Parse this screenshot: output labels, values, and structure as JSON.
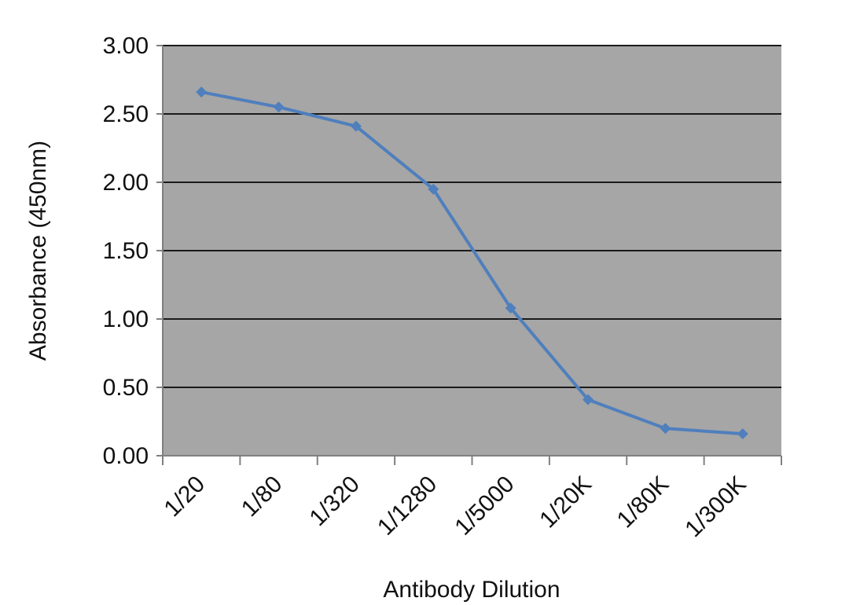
{
  "chart_data": {
    "type": "line",
    "title": "",
    "xlabel": "Antibody Dilution",
    "ylabel": "Absorbance (450nm)",
    "categories": [
      "1/20",
      "1/80",
      "1/320",
      "1/1280",
      "1/5000",
      "1/20K",
      "1/80K",
      "1/300K"
    ],
    "series": [
      {
        "values": [
          2.66,
          2.55,
          2.41,
          1.95,
          1.08,
          0.41,
          0.2,
          0.16
        ]
      }
    ],
    "y_ticks": [
      "0.00",
      "0.50",
      "1.00",
      "1.50",
      "2.00",
      "2.50",
      "3.00"
    ],
    "ylim": [
      0,
      3
    ],
    "grid": true,
    "legend": "none",
    "colors": {
      "plot_background": "#a6a6a6",
      "line": "#4f7fbd",
      "gridline": "#1a1a1a",
      "axis": "#808080"
    }
  }
}
